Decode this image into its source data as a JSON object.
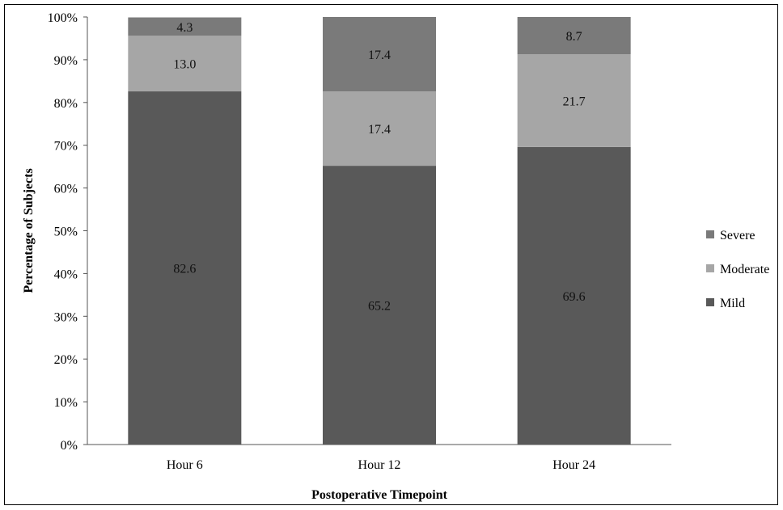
{
  "chart_data": {
    "type": "bar",
    "stacked": true,
    "categories": [
      "Hour 6",
      "Hour 12",
      "Hour 24"
    ],
    "series": [
      {
        "name": "Mild",
        "values": [
          82.6,
          65.2,
          69.6
        ],
        "color": "#595959"
      },
      {
        "name": "Moderate",
        "values": [
          13.0,
          17.4,
          21.7
        ],
        "color": "#a6a6a6"
      },
      {
        "name": "Severe",
        "values": [
          4.3,
          17.4,
          8.7
        ],
        "color": "#7a7a7a"
      }
    ],
    "data_labels": [
      [
        "82.6",
        "13.0",
        "4.3"
      ],
      [
        "65.2",
        "17.4",
        "17.4"
      ],
      [
        "69.6",
        "21.7",
        "8.7"
      ]
    ],
    "title": "",
    "xlabel": "Postoperative Timepoint",
    "ylabel": "Percentage of Subjects",
    "ylim": [
      0,
      100
    ],
    "yticks": [
      "0%",
      "10%",
      "20%",
      "30%",
      "40%",
      "50%",
      "60%",
      "70%",
      "80%",
      "90%",
      "100%"
    ],
    "legend_order": [
      "Severe",
      "Moderate",
      "Mild"
    ],
    "legend_position": "right",
    "grid": false
  }
}
